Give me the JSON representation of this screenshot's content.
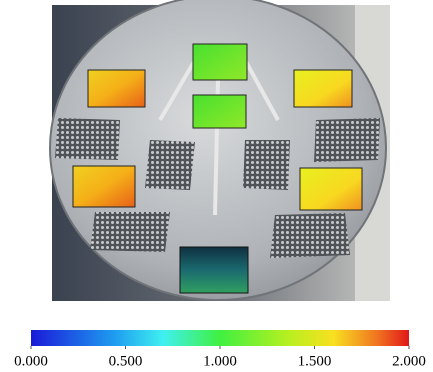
{
  "colorbar": {
    "range": [
      0,
      2
    ],
    "ticks": [
      {
        "value": 0,
        "label": "0.000"
      },
      {
        "value": 0.5,
        "label": "0.500"
      },
      {
        "value": 1,
        "label": "1.000"
      },
      {
        "value": 1.5,
        "label": "1.500"
      },
      {
        "value": 2,
        "label": "2.000"
      }
    ]
  }
}
